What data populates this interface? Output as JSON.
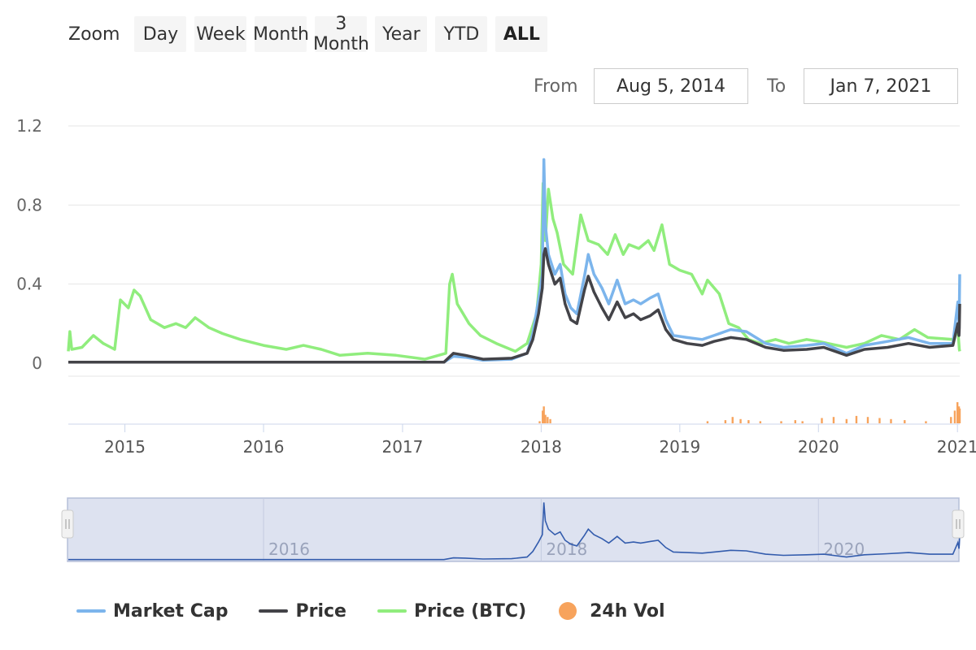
{
  "toolbar": {
    "zoom_label": "Zoom",
    "buttons": [
      "Day",
      "Week",
      "Month",
      "3 Month",
      "Year",
      "YTD",
      "ALL"
    ],
    "active": "ALL",
    "from_label": "From",
    "from_value": "Aug 5, 2014",
    "to_label": "To",
    "to_value": "Jan 7, 2021"
  },
  "colors": {
    "market_cap": "#7cb5ec",
    "price": "#434348",
    "price_btc": "#90ed7d",
    "vol": "#f7a35c",
    "navigator_line": "#335cad",
    "navigator_fill": "#dde2f0"
  },
  "chart_data": {
    "type": "line",
    "x_range": [
      "2014-08-05",
      "2021-01-07"
    ],
    "yaxis": {
      "ticks": [
        0,
        0.4,
        0.8,
        1.2
      ],
      "tick_labels": [
        "0",
        "0.4",
        "0.8",
        "1.2"
      ],
      "ylim": [
        0,
        1.2
      ]
    },
    "x_tick_labels": [
      "2015",
      "2016",
      "2017",
      "2018",
      "2019",
      "2020",
      "2021"
    ],
    "grid": true,
    "legend": "bottom",
    "series": [
      {
        "name": "Market Cap",
        "points": [
          [
            "2014-08-05",
            0.005
          ],
          [
            "2017-04-20",
            0.005
          ],
          [
            "2017-05-15",
            0.035
          ],
          [
            "2017-06-15",
            0.03
          ],
          [
            "2017-08-01",
            0.015
          ],
          [
            "2017-10-15",
            0.02
          ],
          [
            "2017-11-25",
            0.05
          ],
          [
            "2017-12-10",
            0.15
          ],
          [
            "2017-12-25",
            0.32
          ],
          [
            "2018-01-04",
            0.45
          ],
          [
            "2018-01-08",
            1.03
          ],
          [
            "2018-01-12",
            0.7
          ],
          [
            "2018-01-20",
            0.55
          ],
          [
            "2018-02-06",
            0.45
          ],
          [
            "2018-02-20",
            0.5
          ],
          [
            "2018-03-05",
            0.35
          ],
          [
            "2018-03-20",
            0.28
          ],
          [
            "2018-04-05",
            0.25
          ],
          [
            "2018-04-25",
            0.44
          ],
          [
            "2018-05-05",
            0.55
          ],
          [
            "2018-05-20",
            0.45
          ],
          [
            "2018-06-10",
            0.38
          ],
          [
            "2018-06-28",
            0.3
          ],
          [
            "2018-07-20",
            0.42
          ],
          [
            "2018-08-10",
            0.3
          ],
          [
            "2018-09-01",
            0.32
          ],
          [
            "2018-09-20",
            0.3
          ],
          [
            "2018-10-15",
            0.33
          ],
          [
            "2018-11-05",
            0.35
          ],
          [
            "2018-11-25",
            0.22
          ],
          [
            "2018-12-15",
            0.14
          ],
          [
            "2019-01-20",
            0.13
          ],
          [
            "2019-03-01",
            0.12
          ],
          [
            "2019-04-01",
            0.14
          ],
          [
            "2019-05-15",
            0.17
          ],
          [
            "2019-06-25",
            0.16
          ],
          [
            "2019-08-15",
            0.1
          ],
          [
            "2019-10-01",
            0.08
          ],
          [
            "2019-12-01",
            0.09
          ],
          [
            "2020-01-15",
            0.1
          ],
          [
            "2020-03-15",
            0.05
          ],
          [
            "2020-05-01",
            0.09
          ],
          [
            "2020-07-01",
            0.11
          ],
          [
            "2020-08-25",
            0.13
          ],
          [
            "2020-10-20",
            0.1
          ],
          [
            "2020-12-20",
            0.1
          ],
          [
            "2021-01-02",
            0.31
          ],
          [
            "2021-01-04",
            0.24
          ],
          [
            "2021-01-05",
            0.2
          ],
          [
            "2021-01-06",
            0.28
          ],
          [
            "2021-01-07",
            0.45
          ]
        ]
      },
      {
        "name": "Price",
        "points": [
          [
            "2014-08-05",
            0.005
          ],
          [
            "2017-04-20",
            0.005
          ],
          [
            "2017-05-15",
            0.05
          ],
          [
            "2017-06-15",
            0.04
          ],
          [
            "2017-08-01",
            0.02
          ],
          [
            "2017-10-15",
            0.025
          ],
          [
            "2017-11-25",
            0.05
          ],
          [
            "2017-12-10",
            0.12
          ],
          [
            "2017-12-25",
            0.25
          ],
          [
            "2018-01-04",
            0.38
          ],
          [
            "2018-01-08",
            0.55
          ],
          [
            "2018-01-12",
            0.58
          ],
          [
            "2018-01-20",
            0.5
          ],
          [
            "2018-02-06",
            0.4
          ],
          [
            "2018-02-20",
            0.43
          ],
          [
            "2018-03-05",
            0.3
          ],
          [
            "2018-03-20",
            0.22
          ],
          [
            "2018-04-05",
            0.2
          ],
          [
            "2018-04-25",
            0.37
          ],
          [
            "2018-05-05",
            0.44
          ],
          [
            "2018-05-20",
            0.36
          ],
          [
            "2018-06-10",
            0.28
          ],
          [
            "2018-06-28",
            0.22
          ],
          [
            "2018-07-20",
            0.31
          ],
          [
            "2018-08-10",
            0.23
          ],
          [
            "2018-09-01",
            0.25
          ],
          [
            "2018-09-20",
            0.22
          ],
          [
            "2018-10-15",
            0.24
          ],
          [
            "2018-11-05",
            0.27
          ],
          [
            "2018-11-25",
            0.17
          ],
          [
            "2018-12-15",
            0.12
          ],
          [
            "2019-01-20",
            0.1
          ],
          [
            "2019-03-01",
            0.09
          ],
          [
            "2019-04-01",
            0.11
          ],
          [
            "2019-05-15",
            0.13
          ],
          [
            "2019-06-25",
            0.12
          ],
          [
            "2019-08-15",
            0.08
          ],
          [
            "2019-10-01",
            0.065
          ],
          [
            "2019-12-01",
            0.07
          ],
          [
            "2020-01-15",
            0.08
          ],
          [
            "2020-03-15",
            0.04
          ],
          [
            "2020-05-01",
            0.07
          ],
          [
            "2020-07-01",
            0.08
          ],
          [
            "2020-08-25",
            0.1
          ],
          [
            "2020-10-20",
            0.08
          ],
          [
            "2020-12-20",
            0.09
          ],
          [
            "2021-01-02",
            0.2
          ],
          [
            "2021-01-04",
            0.16
          ],
          [
            "2021-01-05",
            0.14
          ],
          [
            "2021-01-06",
            0.18
          ],
          [
            "2021-01-07",
            0.3
          ]
        ]
      },
      {
        "name": "Price (BTC)",
        "points": [
          [
            "2014-08-05",
            0.06
          ],
          [
            "2014-08-09",
            0.16
          ],
          [
            "2014-08-14",
            0.07
          ],
          [
            "2014-09-10",
            0.08
          ],
          [
            "2014-10-10",
            0.14
          ],
          [
            "2014-11-05",
            0.1
          ],
          [
            "2014-12-05",
            0.07
          ],
          [
            "2014-12-20",
            0.32
          ],
          [
            "2015-01-10",
            0.28
          ],
          [
            "2015-01-25",
            0.37
          ],
          [
            "2015-02-10",
            0.34
          ],
          [
            "2015-03-10",
            0.22
          ],
          [
            "2015-04-15",
            0.18
          ],
          [
            "2015-05-15",
            0.2
          ],
          [
            "2015-06-10",
            0.18
          ],
          [
            "2015-07-05",
            0.23
          ],
          [
            "2015-08-10",
            0.18
          ],
          [
            "2015-09-15",
            0.15
          ],
          [
            "2015-11-01",
            0.12
          ],
          [
            "2016-01-01",
            0.09
          ],
          [
            "2016-03-01",
            0.07
          ],
          [
            "2016-04-15",
            0.09
          ],
          [
            "2016-06-01",
            0.07
          ],
          [
            "2016-07-20",
            0.04
          ],
          [
            "2016-10-01",
            0.05
          ],
          [
            "2016-12-15",
            0.04
          ],
          [
            "2017-03-01",
            0.02
          ],
          [
            "2017-04-25",
            0.05
          ],
          [
            "2017-05-05",
            0.4
          ],
          [
            "2017-05-12",
            0.45
          ],
          [
            "2017-05-25",
            0.3
          ],
          [
            "2017-06-25",
            0.2
          ],
          [
            "2017-07-25",
            0.14
          ],
          [
            "2017-09-05",
            0.1
          ],
          [
            "2017-10-25",
            0.06
          ],
          [
            "2017-11-25",
            0.1
          ],
          [
            "2017-12-20",
            0.25
          ],
          [
            "2018-01-01",
            0.5
          ],
          [
            "2018-01-06",
            0.91
          ],
          [
            "2018-01-12",
            0.62
          ],
          [
            "2018-01-20",
            0.88
          ],
          [
            "2018-02-01",
            0.73
          ],
          [
            "2018-02-12",
            0.66
          ],
          [
            "2018-03-01",
            0.5
          ],
          [
            "2018-03-25",
            0.45
          ],
          [
            "2018-04-15",
            0.75
          ],
          [
            "2018-05-05",
            0.62
          ],
          [
            "2018-06-01",
            0.6
          ],
          [
            "2018-06-25",
            0.55
          ],
          [
            "2018-07-15",
            0.65
          ],
          [
            "2018-08-05",
            0.55
          ],
          [
            "2018-08-20",
            0.6
          ],
          [
            "2018-09-15",
            0.58
          ],
          [
            "2018-10-10",
            0.62
          ],
          [
            "2018-10-25",
            0.57
          ],
          [
            "2018-11-15",
            0.7
          ],
          [
            "2018-12-05",
            0.5
          ],
          [
            "2019-01-01",
            0.47
          ],
          [
            "2019-02-01",
            0.45
          ],
          [
            "2019-03-01",
            0.35
          ],
          [
            "2019-03-15",
            0.42
          ],
          [
            "2019-04-15",
            0.35
          ],
          [
            "2019-05-10",
            0.2
          ],
          [
            "2019-06-05",
            0.18
          ],
          [
            "2019-07-01",
            0.12
          ],
          [
            "2019-08-01",
            0.1
          ],
          [
            "2019-09-10",
            0.12
          ],
          [
            "2019-10-15",
            0.1
          ],
          [
            "2019-12-01",
            0.12
          ],
          [
            "2020-01-01",
            0.11
          ],
          [
            "2020-03-15",
            0.08
          ],
          [
            "2020-05-01",
            0.1
          ],
          [
            "2020-06-15",
            0.14
          ],
          [
            "2020-08-01",
            0.12
          ],
          [
            "2020-09-10",
            0.17
          ],
          [
            "2020-10-15",
            0.13
          ],
          [
            "2020-12-20",
            0.12
          ],
          [
            "2021-01-02",
            0.17
          ],
          [
            "2021-01-04",
            0.12
          ],
          [
            "2021-01-06",
            0.07
          ],
          [
            "2021-01-07",
            0.06
          ]
        ]
      },
      {
        "name": "24h Vol",
        "type": "column",
        "points": [
          [
            "2017-12-28",
            0.1
          ],
          [
            "2018-01-05",
            0.6
          ],
          [
            "2018-01-08",
            0.8
          ],
          [
            "2018-01-12",
            0.4
          ],
          [
            "2018-01-18",
            0.3
          ],
          [
            "2018-01-25",
            0.2
          ],
          [
            "2019-03-15",
            0.1
          ],
          [
            "2019-05-01",
            0.15
          ],
          [
            "2019-05-20",
            0.3
          ],
          [
            "2019-06-10",
            0.2
          ],
          [
            "2019-07-01",
            0.15
          ],
          [
            "2019-08-01",
            0.1
          ],
          [
            "2019-09-25",
            0.1
          ],
          [
            "2019-11-01",
            0.15
          ],
          [
            "2019-11-20",
            0.1
          ],
          [
            "2020-01-10",
            0.25
          ],
          [
            "2020-02-10",
            0.3
          ],
          [
            "2020-03-15",
            0.2
          ],
          [
            "2020-04-10",
            0.35
          ],
          [
            "2020-05-10",
            0.3
          ],
          [
            "2020-06-10",
            0.25
          ],
          [
            "2020-07-10",
            0.2
          ],
          [
            "2020-08-15",
            0.15
          ],
          [
            "2020-10-10",
            0.1
          ],
          [
            "2020-12-15",
            0.3
          ],
          [
            "2020-12-25",
            0.6
          ],
          [
            "2021-01-01",
            1.0
          ],
          [
            "2021-01-03",
            0.5
          ],
          [
            "2021-01-05",
            0.8
          ],
          [
            "2021-01-07",
            0.7
          ]
        ]
      }
    ],
    "navigator": {
      "x_tick_labels": [
        "2016",
        "2018",
        "2020"
      ]
    }
  }
}
